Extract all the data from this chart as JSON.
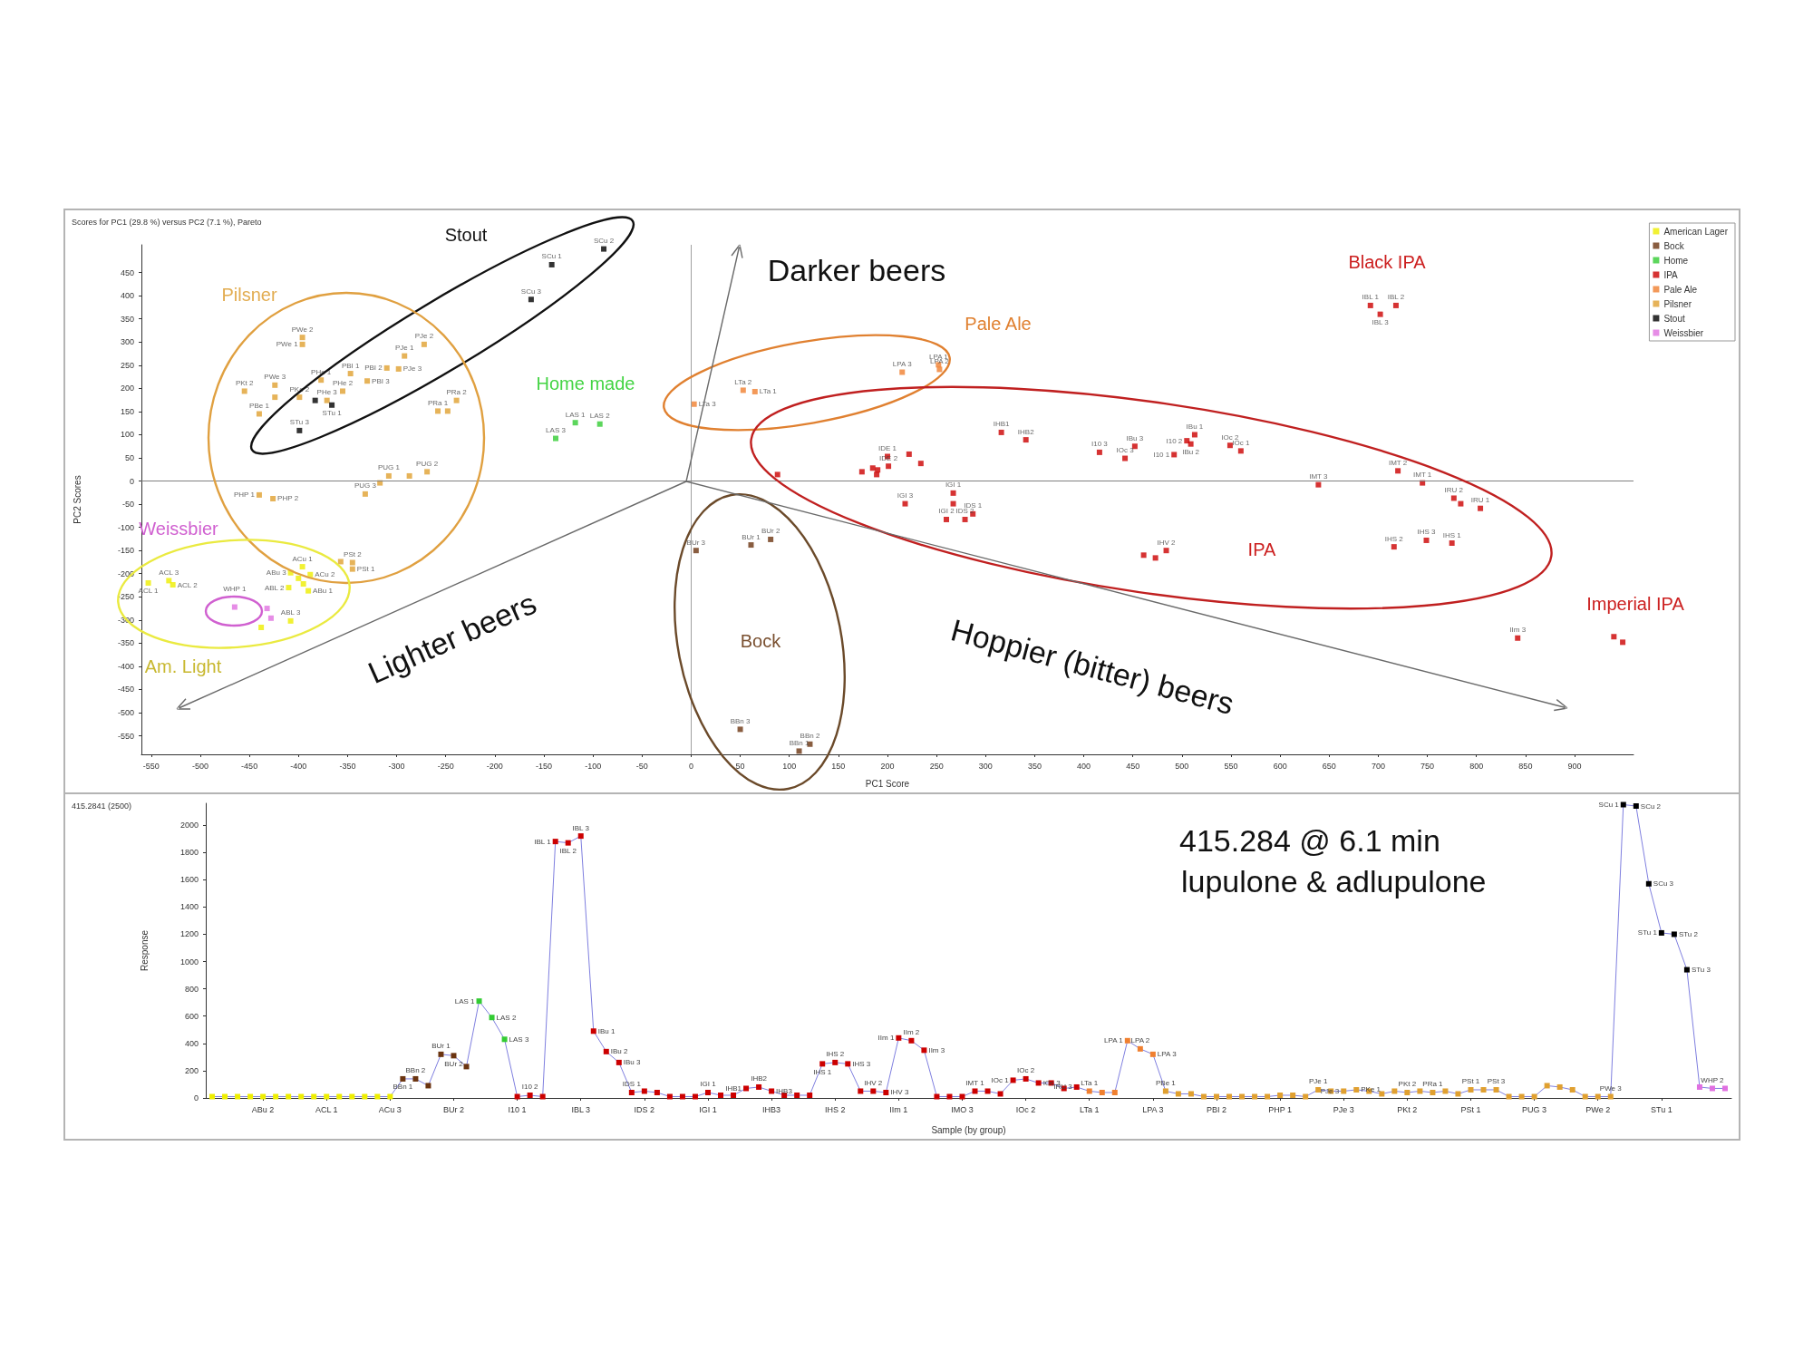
{
  "chart_data": [
    {
      "type": "scatter",
      "title": "Scores for PC1 (29.8 %) versus PC2 (7.1 %), Pareto",
      "xlabel": "PC1 Score",
      "ylabel": "PC2 Scores",
      "xlim": [
        -560,
        960
      ],
      "xticks": [
        -550,
        -500,
        -450,
        -400,
        -350,
        -300,
        -250,
        -200,
        -150,
        -100,
        -50,
        0,
        50,
        100,
        150,
        200,
        250,
        300,
        350,
        400,
        450,
        500,
        550,
        600,
        650,
        700,
        750,
        800,
        850,
        900
      ],
      "ylim": [
        -590,
        510
      ],
      "yticks": [
        -550,
        -500,
        -450,
        -400,
        -350,
        -300,
        -250,
        -200,
        -150,
        -100,
        -50,
        0,
        50,
        100,
        150,
        200,
        250,
        300,
        350,
        400,
        450
      ],
      "legend": "top right",
      "marker": "square",
      "ref_lines": [
        {
          "axis": "x",
          "value": 0,
          "color": "#a0a0a0"
        },
        {
          "axis": "y",
          "value": 0,
          "color": "#808080"
        }
      ],
      "annotations": [
        "Stout",
        "Pilsner",
        "Home made",
        "Weissbier",
        "Am. Light",
        "Darker beers",
        "Pale Ale",
        "Black IPA",
        "IPA",
        "Imperial IPA",
        "Bock",
        "Lighter beers",
        "Hoppier (bitter) beers"
      ],
      "series": [
        {
          "name": "American Lager",
          "color": "#eeee00",
          "x": [
            -553,
            -532,
            -528,
            -408,
            -396,
            -388,
            -410,
            -390,
            -408,
            -438,
            -400,
            -395
          ],
          "values": [
            -220,
            -215,
            -224,
            -198,
            -185,
            -202,
            -230,
            -237,
            -302,
            -316,
            -210,
            -222
          ],
          "value_labels": [
            "ACL 1",
            "ACL 3",
            "ACL 2",
            "ABu 3",
            "ACu 1",
            "ACu 2",
            "ABL 2",
            "ABu 1",
            "ABL 3",
            null,
            null,
            null
          ]
        },
        {
          "name": "Bock",
          "color": "#6b3410",
          "x": [
            5,
            61,
            81,
            50,
            110,
            121
          ],
          "values": [
            -150,
            -138,
            -126,
            -536,
            -583,
            -568
          ],
          "value_labels": [
            "BUr 3",
            "BUr 1",
            "BUr 2",
            "BBn 3",
            "BBn 1",
            "BBn 2"
          ]
        },
        {
          "name": "Home",
          "color": "#33cc33",
          "x": [
            -118,
            -93,
            -138
          ],
          "values": [
            126,
            123,
            92
          ],
          "value_labels": [
            "LAS 1",
            "LAS 2",
            "LAS 3"
          ]
        },
        {
          "name": "IPA",
          "color": "#cc0000",
          "x": [
            88,
            200,
            201,
            174,
            185,
            189,
            190,
            222,
            234,
            218,
            267,
            267,
            260,
            287,
            279,
            316,
            341,
            416,
            442,
            452,
            492,
            505,
            513,
            509,
            549,
            560,
            461,
            473,
            484,
            639,
            720,
            745,
            777,
            784,
            804,
            716,
            749,
            775,
            692,
            718,
            702,
            842,
            940,
            949
          ],
          "values": [
            14,
            53,
            32,
            20,
            28,
            14,
            24,
            58,
            38,
            -49,
            -26,
            -49,
            -83,
            -71,
            -83,
            105,
            89,
            62,
            49,
            75,
            57,
            87,
            100,
            80,
            77,
            65,
            -160,
            -166,
            -150,
            -8,
            22,
            -4,
            -37,
            -49,
            -59,
            -142,
            -128,
            -134,
            379,
            379,
            360,
            -339,
            -336,
            -348
          ],
          "value_labels": [
            null,
            "IDE 1",
            "IDE 2",
            null,
            null,
            null,
            null,
            null,
            null,
            "IGI 3",
            "IGI 1",
            null,
            "IGI 2",
            "IDS 1",
            "IDS 2",
            "IHB1",
            "IHB2",
            "I10 3",
            "IOc 3",
            "IBu 3",
            "I10 1",
            "I10 2",
            "IBu 1",
            "IBu 2",
            "IOc 2",
            "IOc 1",
            null,
            null,
            "IHV 2",
            "IMT 3",
            "IMT 2",
            "IMT 1",
            "IRU 2",
            null,
            "IRU 1",
            "IHS 2",
            "IHS 3",
            "IHS 1",
            "IBL 1",
            "IBL 2",
            "IBL 3",
            "IIm 3",
            null,
            null
          ]
        },
        {
          "name": "Pale Ale",
          "color": "#f08030",
          "x": [
            3,
            53,
            65,
            215,
            252,
            253
          ],
          "values": [
            166,
            196,
            193,
            235,
            251,
            241
          ],
          "value_labels": [
            "LTa 3",
            "LTa 2",
            "LTa 1",
            "LPA 3",
            "LPA 1",
            "LPA 2"
          ]
        },
        {
          "name": "Pilsner",
          "color": "#e0a030",
          "x": [
            -396,
            -396,
            -424,
            -455,
            -424,
            -440,
            -399,
            -377,
            -355,
            -371,
            -347,
            -310,
            -330,
            -292,
            -272,
            -298,
            -258,
            -239,
            -248,
            -332,
            -317,
            -308,
            -287,
            -269,
            -440,
            -426,
            -357,
            -345,
            -345
          ],
          "values": [
            310,
            295,
            207,
            194,
            181,
            145,
            181,
            218,
            194,
            174,
            232,
            244,
            216,
            270,
            295,
            242,
            151,
            174,
            151,
            -28,
            -4,
            11,
            11,
            20,
            -30,
            -38,
            -174,
            -176,
            -190
          ],
          "value_labels": [
            "PWe 2",
            "PWe 1",
            "PWe 3",
            "PKt 2",
            null,
            "PBe 1",
            "PKe 2",
            "PHe 1",
            "PHe 2",
            "PHe 3",
            "PBI 1",
            "PBI 2",
            "PBI 3",
            "PJe 1",
            "PJe 2",
            "PJe 3",
            "PRa 1",
            "PRa 2",
            null,
            "PUG 3",
            null,
            "PUG 1",
            null,
            "PUG 2",
            "PHP 1",
            "PHP 2",
            null,
            "PSt 2",
            "PSt 1"
          ]
        },
        {
          "name": "Stout",
          "color": "#000000",
          "x": [
            -142,
            -89,
            -163,
            -383,
            -366,
            -399
          ],
          "values": [
            467,
            501,
            392,
            174,
            164,
            109
          ],
          "value_labels": [
            "SCu 1",
            "SCu 2",
            "SCu 3",
            null,
            "STu 1",
            "STu 3"
          ]
        },
        {
          "name": "Weissbier",
          "color": "#e070e0",
          "x": [
            -465,
            -432,
            -428
          ],
          "values": [
            -272,
            -275,
            -296
          ],
          "value_labels": [
            "WHP 1",
            null,
            null
          ]
        }
      ]
    },
    {
      "type": "line",
      "title": "415.2841 (2500)",
      "xlabel": "Sample (by group)",
      "ylabel": "Response",
      "categories": [
        null,
        null,
        null,
        null,
        "ABu 2",
        null,
        null,
        null,
        null,
        "ACL 1",
        null,
        null,
        null,
        null,
        "ACu 3",
        null,
        null,
        null,
        null,
        "BUr 2",
        null,
        null,
        null,
        null,
        "I10 1",
        null,
        null,
        null,
        null,
        "IBL 3",
        null,
        null,
        null,
        null,
        "IDS 2",
        null,
        null,
        null,
        null,
        "IGI 1",
        null,
        null,
        null,
        null,
        "IHB3",
        null,
        null,
        null,
        null,
        "IHS 2",
        null,
        null,
        null,
        null,
        "IIm 1",
        null,
        null,
        null,
        null,
        "IMO 3",
        null,
        null,
        null,
        null,
        "IOc 2",
        null,
        null,
        null,
        null,
        "LTa 1",
        null,
        null,
        null,
        null,
        "LPA 3",
        null,
        null,
        null,
        null,
        "PBI 2",
        null,
        null,
        null,
        null,
        "PHP 1",
        null,
        null,
        null,
        null,
        "PJe 3",
        null,
        null,
        null,
        null,
        "PKt 2",
        null,
        null,
        null,
        null,
        "PSt 1",
        null,
        null,
        null,
        null,
        "PUG 3",
        null,
        null,
        null,
        null,
        "PWe 2",
        null,
        null,
        null,
        null,
        "STu 1",
        null,
        null,
        null,
        null,
        null
      ],
      "ylim": [
        0,
        2160
      ],
      "yticks": [
        0,
        200,
        400,
        600,
        800,
        1000,
        1200,
        1400,
        1600,
        1800,
        2000
      ],
      "marker": "square",
      "annotations": [
        "415.284 @ 6.1 min",
        "lupulone & adlupulone"
      ],
      "series": [
        {
          "color": "#7f7fdf",
          "colors": [
            "#eeee00",
            "#eeee00",
            "#eeee00",
            "#eeee00",
            "#eeee00",
            "#eeee00",
            "#eeee00",
            "#eeee00",
            "#eeee00",
            "#eeee00",
            "#eeee00",
            "#eeee00",
            "#eeee00",
            "#eeee00",
            "#eeee00",
            "#6b3410",
            "#6b3410",
            "#6b3410",
            "#6b3410",
            "#6b3410",
            "#6b3410",
            "#33cc33",
            "#33cc33",
            "#33cc33",
            "#cc0000",
            "#cc0000",
            "#cc0000",
            "#cc0000",
            "#cc0000",
            "#cc0000",
            "#cc0000",
            "#cc0000",
            "#cc0000",
            "#cc0000",
            "#cc0000",
            "#cc0000",
            "#cc0000",
            "#cc0000",
            "#cc0000",
            "#cc0000",
            "#cc0000",
            "#cc0000",
            "#cc0000",
            "#cc0000",
            "#cc0000",
            "#cc0000",
            "#cc0000",
            "#cc0000",
            "#cc0000",
            "#cc0000",
            "#cc0000",
            "#cc0000",
            "#cc0000",
            "#cc0000",
            "#cc0000",
            "#cc0000",
            "#cc0000",
            "#cc0000",
            "#cc0000",
            "#cc0000",
            "#cc0000",
            "#cc0000",
            "#cc0000",
            "#cc0000",
            "#cc0000",
            "#cc0000",
            "#cc0000",
            "#cc0000",
            "#cc0000",
            "#f08030",
            "#f08030",
            "#f08030",
            "#f08030",
            "#f08030",
            "#f08030",
            "#e0a030",
            "#e0a030",
            "#e0a030",
            "#e0a030",
            "#e0a030",
            "#e0a030",
            "#e0a030",
            "#e0a030",
            "#e0a030",
            "#e0a030",
            "#e0a030",
            "#e0a030",
            "#e0a030",
            "#e0a030",
            "#e0a030",
            "#e0a030",
            "#e0a030",
            "#e0a030",
            "#e0a030",
            "#e0a030",
            "#e0a030",
            "#e0a030",
            "#e0a030",
            "#e0a030",
            "#e0a030",
            "#e0a030",
            "#e0a030",
            "#e0a030",
            "#e0a030",
            "#e0a030",
            "#e0a030",
            "#e0a030",
            "#e0a030",
            "#e0a030",
            "#e0a030",
            "#e0a030",
            "#000000",
            "#000000",
            "#000000",
            "#000000",
            "#000000",
            "#000000",
            "#e070e0",
            "#e070e0",
            "#e070e0"
          ],
          "values": [
            10,
            10,
            10,
            10,
            10,
            10,
            10,
            10,
            10,
            10,
            10,
            10,
            10,
            10,
            10,
            140,
            140,
            90,
            320,
            310,
            230,
            710,
            590,
            430,
            10,
            20,
            10,
            1880,
            1870,
            1920,
            490,
            340,
            260,
            40,
            50,
            40,
            10,
            10,
            10,
            40,
            20,
            20,
            70,
            80,
            50,
            20,
            20,
            20,
            250,
            260,
            250,
            50,
            50,
            40,
            440,
            420,
            350,
            10,
            10,
            10,
            50,
            50,
            30,
            130,
            140,
            110,
            110,
            70,
            80,
            50,
            40,
            40,
            420,
            360,
            320,
            50,
            30,
            30,
            10,
            10,
            10,
            10,
            10,
            10,
            20,
            20,
            10,
            60,
            50,
            50,
            60,
            50,
            30,
            50,
            40,
            50,
            40,
            50,
            30,
            60,
            60,
            60,
            10,
            10,
            10,
            90,
            80,
            60,
            10,
            10,
            10,
            2150,
            2140,
            1570,
            1210,
            1200,
            940,
            80,
            70,
            70
          ],
          "value_labels": [
            null,
            null,
            null,
            null,
            null,
            null,
            null,
            null,
            null,
            null,
            null,
            null,
            null,
            null,
            null,
            "BBn 1",
            "BBn 2",
            null,
            "BUr 1",
            "BUr 2",
            null,
            "LAS 1",
            "LAS 2",
            "LAS 3",
            null,
            "I10 2",
            null,
            "IBL 1",
            "IBL 2",
            "IBL 3",
            "IBu 1",
            "IBu 2",
            "IBu 3",
            "IDS 1",
            null,
            null,
            null,
            null,
            null,
            "IGI 1",
            null,
            null,
            "IHB1",
            "IHB2",
            "IHB3",
            null,
            null,
            null,
            "IHS 1",
            "IHS 2",
            "IHS 3",
            null,
            "IHV 2",
            "IHV 3",
            "IIm 1",
            "IIm 2",
            "IIm 3",
            null,
            null,
            null,
            "IMT 1",
            null,
            null,
            "IOc 1",
            "IOc 2",
            "IOc 3",
            null,
            null,
            "IRU 3",
            "LTa 1",
            null,
            null,
            "LPA 1",
            "LPA 2",
            "LPA 3",
            "PBe 1",
            null,
            null,
            null,
            null,
            null,
            null,
            null,
            null,
            null,
            null,
            null,
            "PJe 1",
            null,
            "PJe 3",
            "PKe 1",
            null,
            null,
            null,
            "PKt 2",
            null,
            "PRa 1",
            null,
            null,
            "PSt 1",
            null,
            "PSt 3",
            null,
            null,
            null,
            null,
            null,
            null,
            null,
            null,
            "PWe 3",
            "SCu 1",
            "SCu 2",
            "SCu 3",
            "STu 1",
            "STu 2",
            "STu 3",
            null,
            "WHP 2",
            null
          ]
        }
      ]
    }
  ]
}
